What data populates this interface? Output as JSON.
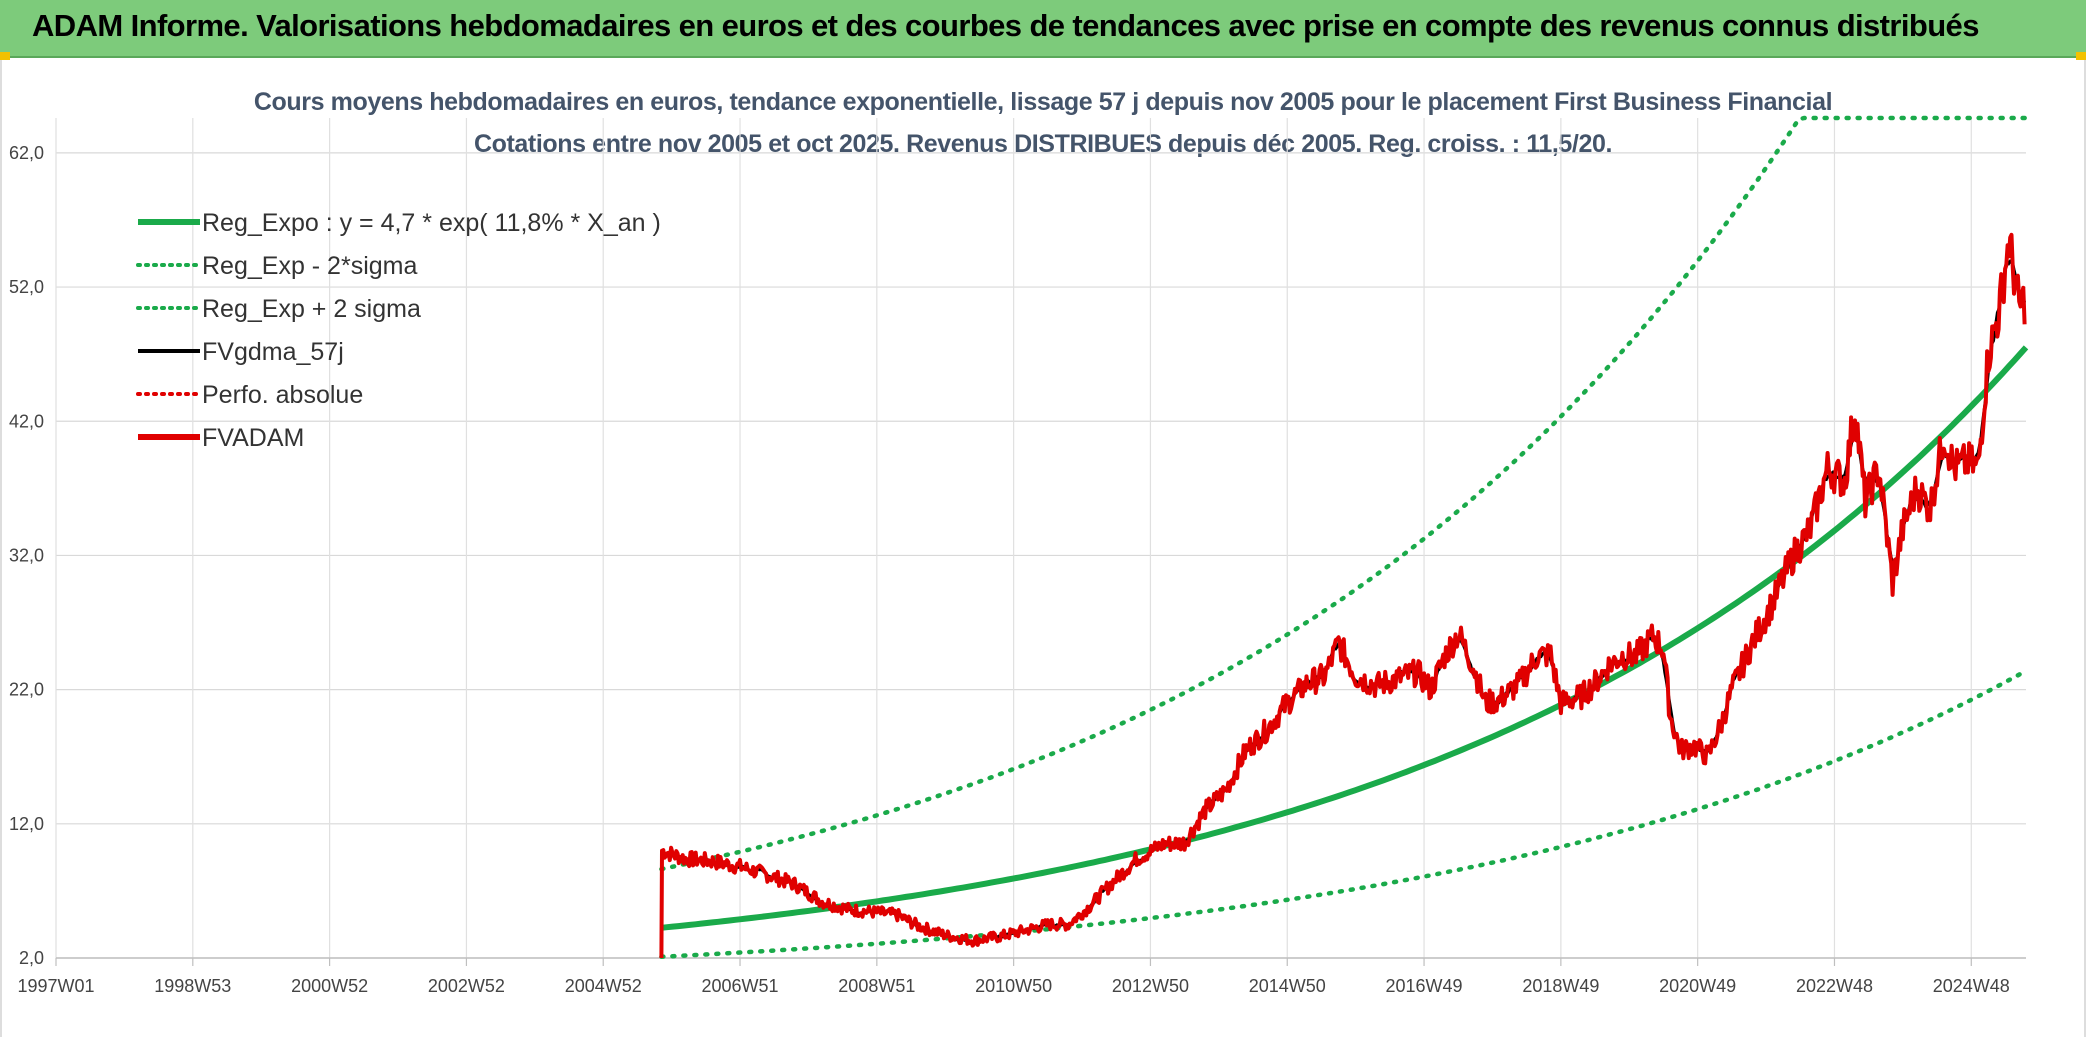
{
  "banner": {
    "title": "ADAM Informe. Valorisations hebdomadaires en euros et des courbes de tendances avec prise en compte des revenus connus distribués"
  },
  "colors": {
    "banner": "#7dcb7b",
    "green": "#1aaa4a",
    "black": "#000000",
    "red": "#e00000"
  },
  "chart_data": {
    "type": "line",
    "title": "Cours moyens hebdomadaires en euros, tendance exponentielle, lissage 57 j depuis nov 2005 pour le placement First Business Financial",
    "subtitle": "Cotations entre nov 2005 et oct 2025. Revenus DISTRIBUES depuis déc 2005. Reg. croiss. : 11,5/20.",
    "xlabel": "",
    "ylabel": "",
    "x_range": [
      1997.0,
      2025.8
    ],
    "ylim": [
      2,
      64.6
    ],
    "yticks": [
      2,
      12,
      22,
      32,
      42,
      52,
      62
    ],
    "ytick_labels": [
      "2,0",
      "12,0",
      "22,0",
      "32,0",
      "42,0",
      "52,0",
      "62,0"
    ],
    "xticks": [
      1997.0,
      1999.0,
      2001.0,
      2003.0,
      2005.0,
      2007.0,
      2009.0,
      2011.0,
      2013.0,
      2015.0,
      2017.0,
      2019.0,
      2021.0,
      2023.0,
      2025.0
    ],
    "xtick_labels": [
      "1997W01",
      "1998W53",
      "2000W52",
      "2002W52",
      "2004W52",
      "2006W51",
      "2008W51",
      "2010W50",
      "2012W50",
      "2014W50",
      "2016W49",
      "2018W49",
      "2020W49",
      "2022W48",
      "2024W48"
    ],
    "regression": {
      "a": 4.7,
      "rate": 0.118,
      "start": 2005.85,
      "end": 2025.8,
      "sigma_factor": 2.03
    },
    "legend": [
      {
        "name": "Reg_Expo : y = 4,7 * exp( 11,8% *  X_an )",
        "color": "#1aaa4a",
        "style": "solid-thick"
      },
      {
        "name": "Reg_Exp - 2*sigma",
        "color": "#1aaa4a",
        "style": "dotted"
      },
      {
        "name": "Reg_Exp + 2 sigma",
        "color": "#1aaa4a",
        "style": "dotted"
      },
      {
        "name": "FVgdma_57j",
        "color": "#000000",
        "style": "solid"
      },
      {
        "name": "Perfo. absolue",
        "color": "#e00000",
        "style": "dotted"
      },
      {
        "name": "FVADAM",
        "color": "#e00000",
        "style": "solid-thick"
      }
    ],
    "series_fvadam": [
      [
        2005.85,
        0
      ],
      [
        2005.86,
        10.0
      ],
      [
        2006.2,
        9.4
      ],
      [
        2006.6,
        9.2
      ],
      [
        2007.0,
        8.8
      ],
      [
        2007.4,
        8.2
      ],
      [
        2007.8,
        7.5
      ],
      [
        2008.2,
        6.2
      ],
      [
        2008.6,
        5.6
      ],
      [
        2009.0,
        5.4
      ],
      [
        2009.3,
        5.2
      ],
      [
        2009.6,
        4.4
      ],
      [
        2010.0,
        3.7
      ],
      [
        2010.4,
        3.3
      ],
      [
        2010.8,
        3.6
      ],
      [
        2011.2,
        4.1
      ],
      [
        2011.5,
        4.5
      ],
      [
        2011.8,
        4.5
      ],
      [
        2012.1,
        5.8
      ],
      [
        2012.4,
        7.4
      ],
      [
        2012.8,
        9.4
      ],
      [
        2013.2,
        10.5
      ],
      [
        2013.5,
        10.6
      ],
      [
        2013.8,
        13.0
      ],
      [
        2014.1,
        14.5
      ],
      [
        2014.4,
        17.5
      ],
      [
        2014.7,
        19.0
      ],
      [
        2015.0,
        21.0
      ],
      [
        2015.3,
        22.5
      ],
      [
        2015.55,
        23.0
      ],
      [
        2015.75,
        25.5
      ],
      [
        2016.0,
        23.0
      ],
      [
        2016.3,
        22.3
      ],
      [
        2016.6,
        22.8
      ],
      [
        2016.9,
        23.3
      ],
      [
        2017.1,
        22.0
      ],
      [
        2017.3,
        24.5
      ],
      [
        2017.5,
        26.2
      ],
      [
        2017.7,
        24.0
      ],
      [
        2017.9,
        21.0
      ],
      [
        2018.1,
        21.2
      ],
      [
        2018.4,
        22.5
      ],
      [
        2018.65,
        24.5
      ],
      [
        2018.85,
        24.6
      ],
      [
        2019.0,
        21.0
      ],
      [
        2019.3,
        21.5
      ],
      [
        2019.5,
        22.5
      ],
      [
        2019.7,
        23.8
      ],
      [
        2019.9,
        24.5
      ],
      [
        2020.1,
        24.5
      ],
      [
        2020.35,
        26.0
      ],
      [
        2020.5,
        25.0
      ],
      [
        2020.6,
        20.0
      ],
      [
        2020.75,
        17.5
      ],
      [
        2020.95,
        17.8
      ],
      [
        2021.15,
        17.0
      ],
      [
        2021.35,
        19.5
      ],
      [
        2021.5,
        22.0
      ],
      [
        2021.8,
        25.5
      ],
      [
        2022.1,
        28.5
      ],
      [
        2022.4,
        32.0
      ],
      [
        2022.65,
        34.0
      ],
      [
        2022.9,
        38.5
      ],
      [
        2023.15,
        37.5
      ],
      [
        2023.3,
        43.0
      ],
      [
        2023.45,
        36.0
      ],
      [
        2023.65,
        38.5
      ],
      [
        2023.85,
        30.0
      ],
      [
        2024.0,
        34.0
      ],
      [
        2024.2,
        37.0
      ],
      [
        2024.4,
        35.5
      ],
      [
        2024.6,
        41.0
      ],
      [
        2024.75,
        38.5
      ],
      [
        2024.95,
        39.0
      ],
      [
        2025.1,
        38.5
      ],
      [
        2025.25,
        47.0
      ],
      [
        2025.4,
        50.0
      ],
      [
        2025.55,
        55.5
      ],
      [
        2025.7,
        50.5
      ],
      [
        2025.78,
        51.0
      ]
    ]
  }
}
